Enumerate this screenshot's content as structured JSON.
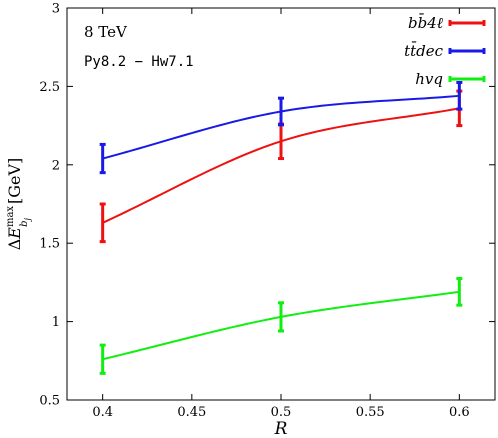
{
  "chart_data": {
    "type": "line",
    "xlabel": "R",
    "ylabel": "ΔE_{b_j}^{max} [GeV]",
    "ylabel_parts": {
      "delta": "Δ",
      "e": "E",
      "sup": "max",
      "sub": "b",
      "subsub": "j",
      "unit": "[GeV]"
    },
    "xlim": [
      0.38,
      0.62
    ],
    "ylim": [
      0.5,
      3.0
    ],
    "xticks": [
      0.4,
      0.45,
      0.5,
      0.55,
      0.6
    ],
    "xtick_labels": [
      "0.4",
      "0.45",
      "0.5",
      "0.55",
      "0.6"
    ],
    "yticks": [
      0.5,
      1,
      1.5,
      2,
      2.5,
      3
    ],
    "ytick_labels": [
      "0.5",
      "1",
      "1.5",
      "2",
      "2.5",
      "3"
    ],
    "annotations": [
      "8 TeV",
      "Py8.2 − Hw7.1"
    ],
    "legend_position": "top-right",
    "grid": false,
    "x": [
      0.4,
      0.5,
      0.6
    ],
    "series": [
      {
        "name": "bb̄4ℓ",
        "color": "#ee1111",
        "values": [
          1.63,
          2.15,
          2.36
        ],
        "errors": [
          0.12,
          0.11,
          0.11
        ]
      },
      {
        "name": "tt̄dec",
        "color": "#1a1ae6",
        "values": [
          2.04,
          2.34,
          2.44
        ],
        "errors": [
          0.09,
          0.085,
          0.085
        ]
      },
      {
        "name": "hvq",
        "color": "#11ee11",
        "values": [
          0.76,
          1.03,
          1.19
        ],
        "errors": [
          0.09,
          0.09,
          0.085
        ]
      }
    ]
  }
}
